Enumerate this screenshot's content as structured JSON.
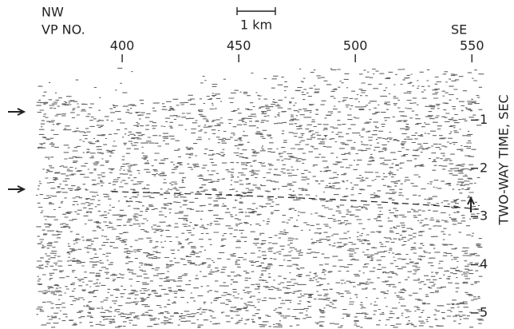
{
  "chart_data": {
    "type": "seismic-section",
    "left_label": "NW",
    "right_label": "SE",
    "x_label": "VP NO.",
    "scale_label": "1 km",
    "y_label": "TWO-WAY TIME, SEC",
    "xlim": [
      363,
      553
    ],
    "xticks": [
      400,
      450,
      500,
      550
    ],
    "ylim": [
      0,
      5.3
    ],
    "yticks": [
      1,
      2,
      3,
      4,
      5
    ]
  }
}
